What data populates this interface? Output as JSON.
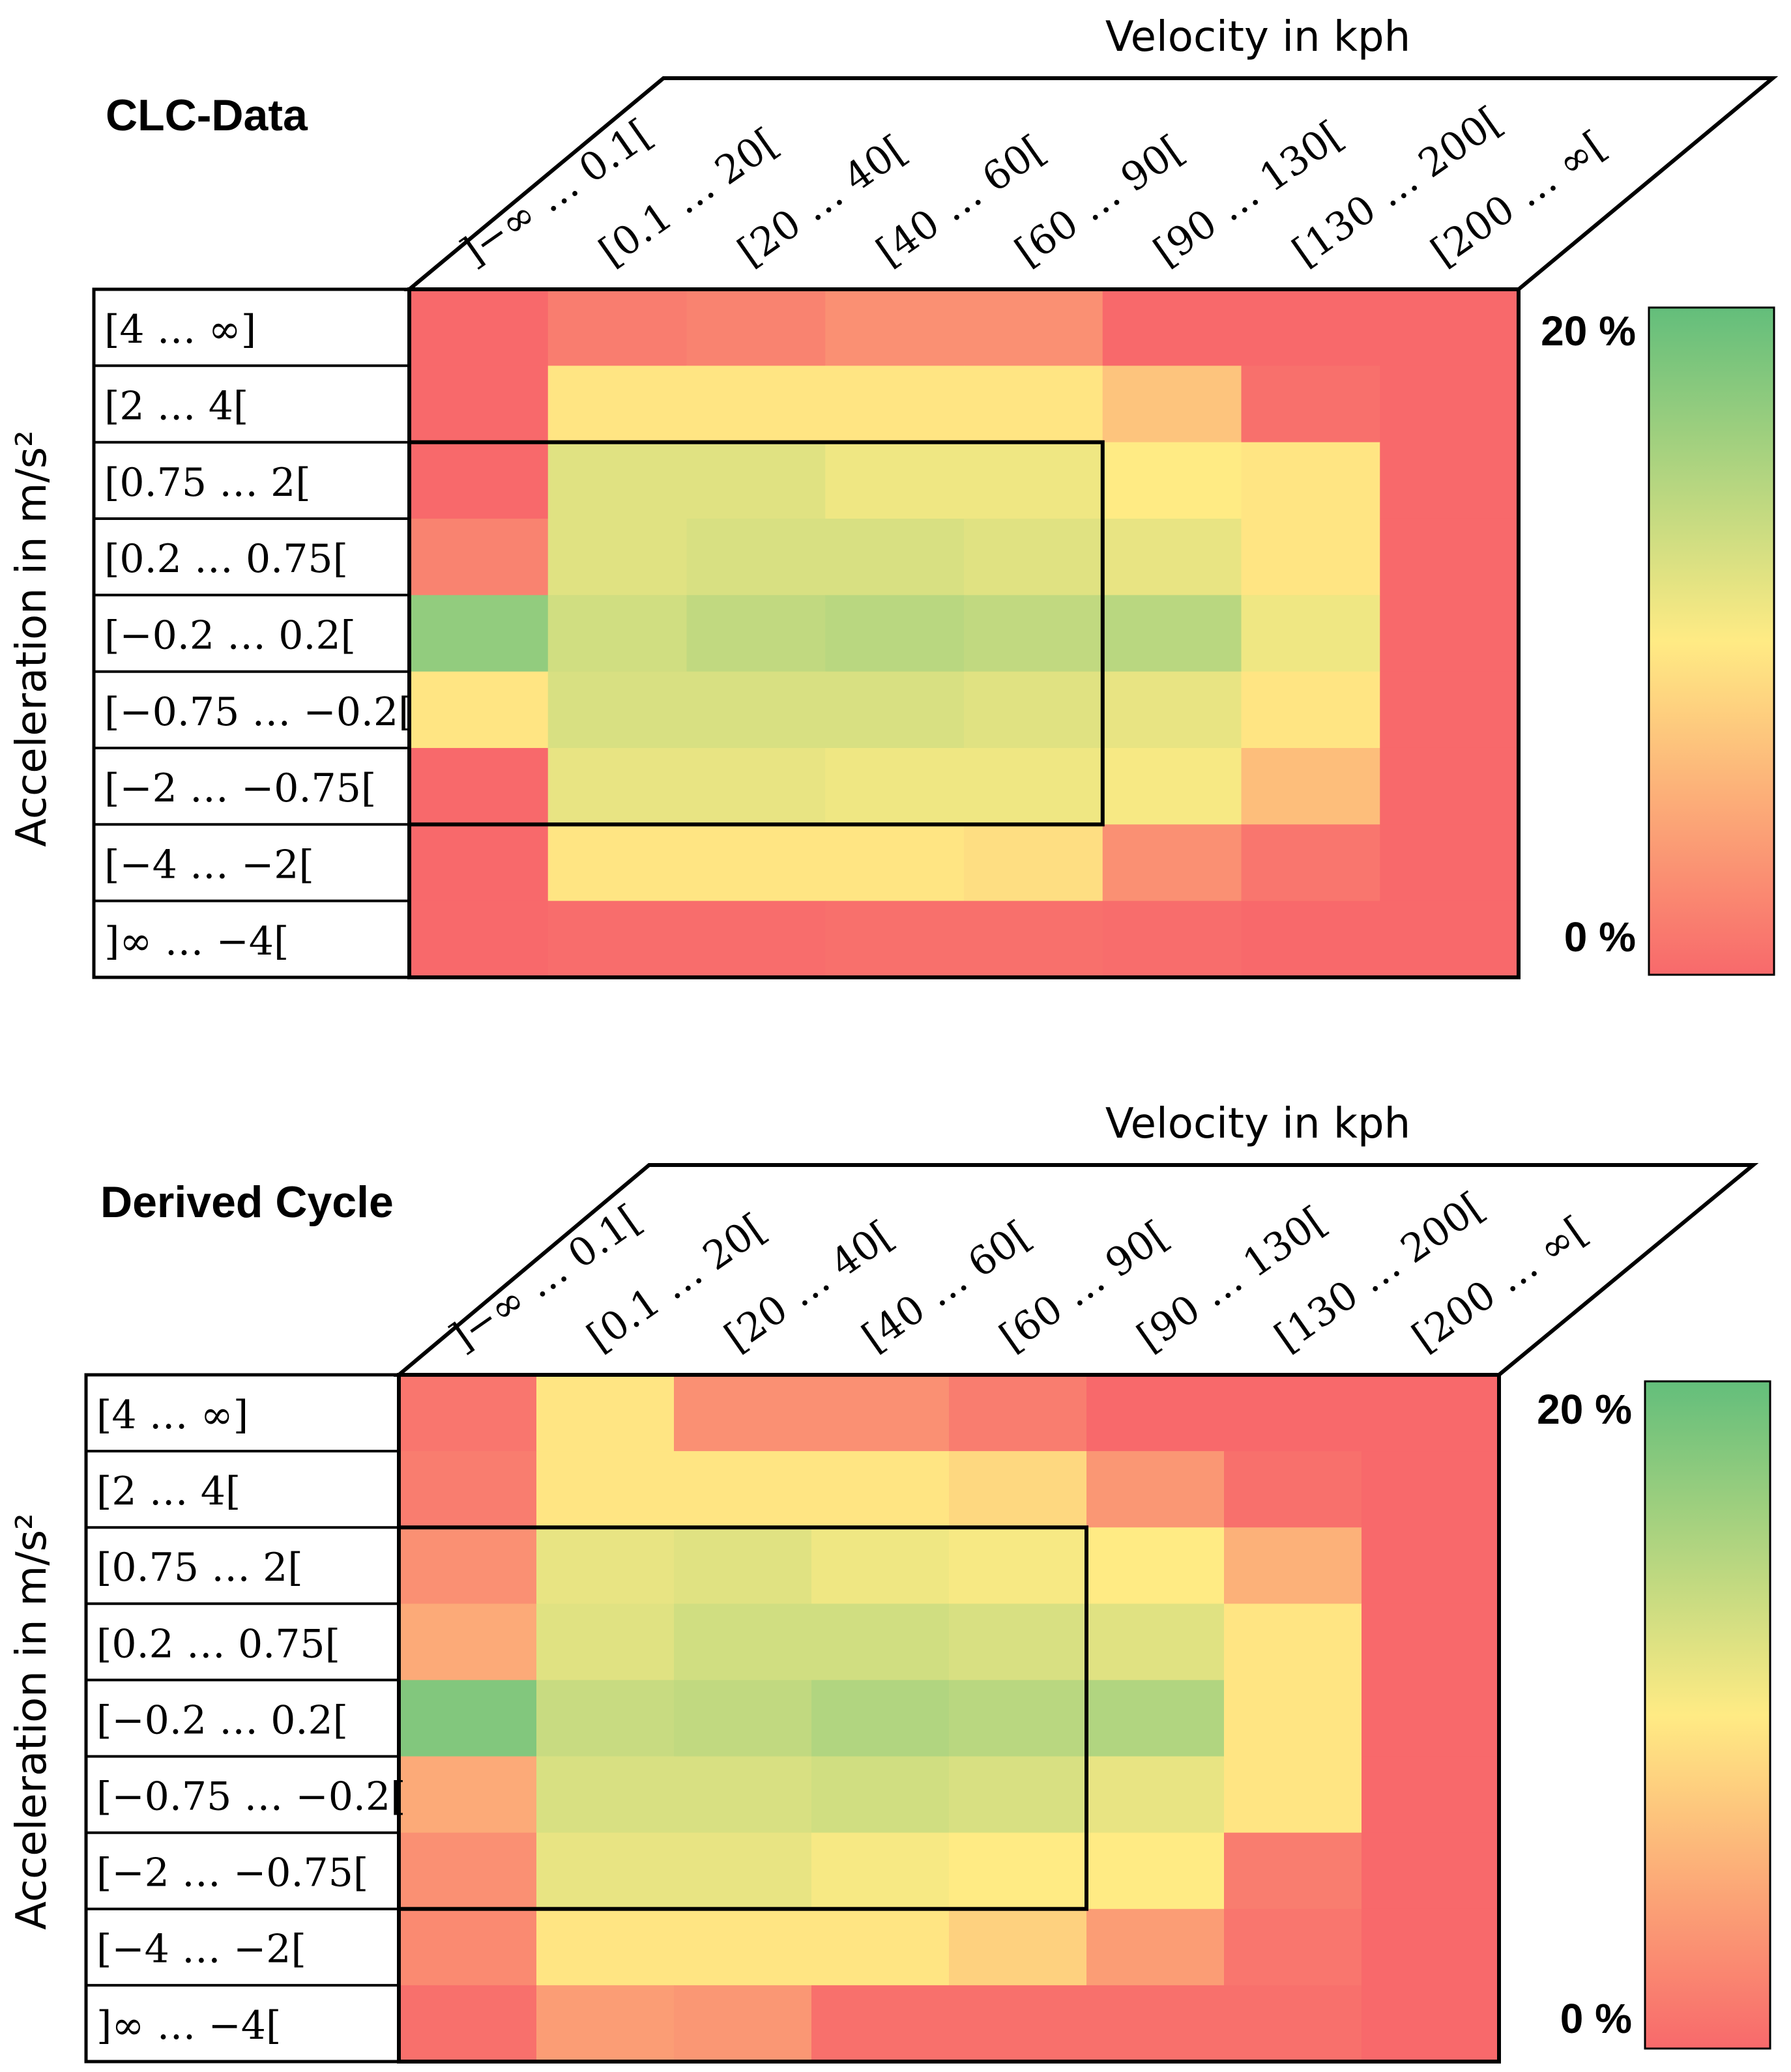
{
  "chart_data": [
    {
      "type": "heatmap",
      "title": "CLC-Data",
      "xlabel": "Velocity in kph",
      "ylabel": "Acceleration in m/s²",
      "x_categories": [
        "]−∞ … 0.1[",
        "[0.1 … 20[",
        "[20 … 40[",
        "[40 … 60[",
        "[60 … 90[",
        "[90 … 130[",
        "[130 … 200[",
        "[200 … ∞["
      ],
      "y_categories": [
        "[4 … ∞]",
        "[2 … 4[",
        "[0.75 … 2[",
        "[0.2 …  0.75[",
        "[−0.2 … 0.2[",
        "[−0.75 … −0.2[",
        "[−2 … −0.75[",
        "[−4 … −2[",
        "]∞ … −4["
      ],
      "values_percent": [
        [
          0.0,
          1.5,
          2.0,
          3.0,
          3.0,
          0.0,
          0.0,
          0.0
        ],
        [
          0.0,
          9.5,
          9.5,
          9.5,
          9.5,
          7.0,
          0.5,
          0.0
        ],
        [
          0.0,
          12.0,
          12.0,
          11.0,
          11.0,
          10.0,
          9.5,
          0.0
        ],
        [
          2.0,
          12.0,
          12.5,
          12.5,
          12.0,
          11.5,
          9.5,
          0.0
        ],
        [
          17.0,
          13.0,
          14.0,
          14.5,
          14.0,
          14.5,
          11.0,
          0.0
        ],
        [
          9.5,
          12.5,
          12.5,
          12.5,
          12.0,
          11.5,
          9.5,
          0.0
        ],
        [
          0.0,
          11.5,
          11.5,
          11.0,
          11.0,
          10.5,
          6.5,
          0.0
        ],
        [
          0.0,
          9.5,
          9.5,
          9.5,
          9.0,
          3.0,
          1.0,
          0.0
        ],
        [
          0.0,
          0.3,
          0.3,
          0.5,
          0.5,
          0.3,
          0.0,
          0.0
        ]
      ],
      "highlight_box": {
        "rows": [
          "[0.75 … 2[",
          "[−2 … −0.75["
        ],
        "cols": [
          "[0.1 … 20[",
          "[60 … 90["
        ]
      },
      "colorbar": {
        "max_label": "20 %",
        "min_label": "0 %",
        "range": [
          0,
          20
        ],
        "colors": [
          "#f8696b",
          "#ffeb84",
          "#63be7b"
        ]
      }
    },
    {
      "type": "heatmap",
      "title": "Derived Cycle",
      "xlabel": "Velocity in kph",
      "ylabel": "Acceleration in m/s²",
      "x_categories": [
        "]−∞ … 0.1[",
        "[0.1 … 20[",
        "[20 … 40[",
        "[40 … 60[",
        "[60 … 90[",
        "[90 … 130[",
        "[130 … 200[",
        "[200 … ∞["
      ],
      "y_categories": [
        "[4 … ∞]",
        "[2 … 4[",
        "[0.75 … 2[",
        "[0.2 …  0.75[",
        "[−0.2 … 0.2[",
        "[−0.75 … −0.2[",
        "[−2 … −0.75[",
        "[−4 … −2[",
        "]∞ … −4["
      ],
      "values_percent": [
        [
          1.0,
          9.5,
          3.0,
          3.0,
          1.5,
          0.0,
          0.0,
          0.0
        ],
        [
          1.5,
          9.5,
          9.5,
          9.5,
          8.5,
          3.5,
          0.5,
          0.0
        ],
        [
          3.0,
          11.5,
          12.0,
          11.0,
          10.5,
          10.0,
          5.5,
          0.0
        ],
        [
          5.0,
          12.0,
          13.0,
          13.0,
          12.5,
          12.0,
          9.5,
          0.0
        ],
        [
          18.0,
          13.5,
          14.0,
          15.0,
          14.5,
          15.0,
          9.5,
          0.0
        ],
        [
          5.0,
          12.5,
          12.5,
          13.0,
          12.5,
          11.5,
          9.5,
          0.0
        ],
        [
          3.0,
          11.5,
          11.5,
          10.5,
          10.0,
          10.0,
          1.5,
          0.0
        ],
        [
          2.5,
          9.5,
          9.5,
          9.5,
          8.0,
          4.0,
          1.0,
          0.0
        ],
        [
          0.5,
          4.0,
          3.5,
          0.5,
          0.5,
          0.5,
          0.5,
          0.0
        ]
      ],
      "highlight_box": {
        "rows": [
          "[0.75 … 2[",
          "[−2 … −0.75["
        ],
        "cols": [
          "[0.1 … 20[",
          "[60 … 90["
        ]
      },
      "colorbar": {
        "max_label": "20 %",
        "min_label": "0 %",
        "range": [
          0,
          20
        ],
        "colors": [
          "#f8696b",
          "#ffeb84",
          "#63be7b"
        ]
      }
    }
  ]
}
